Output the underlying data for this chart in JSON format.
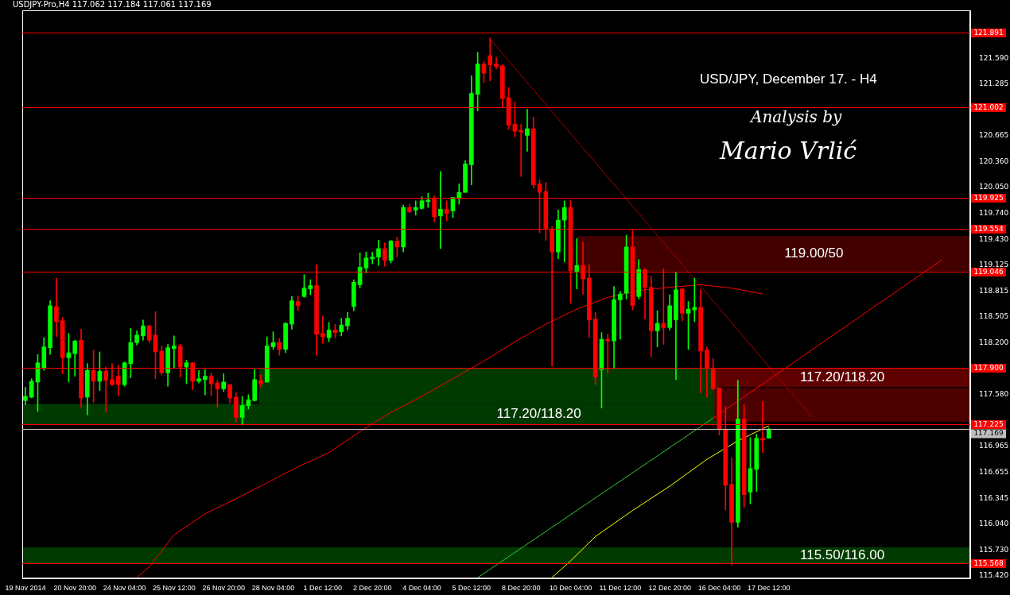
{
  "chart_data": {
    "type": "candlestick",
    "title": "USD/JPY, December 17. - H4",
    "annotations": [
      "USDJPY-Pro,H4  117.062 117.184 117.061 117.169",
      "Analysis by",
      "Mario Vrlić"
    ],
    "categories": [
      "19 Nov 2014",
      null,
      null,
      null,
      null,
      null,
      null,
      null,
      "20 Nov 20:00",
      null,
      null,
      null,
      null,
      null,
      null,
      null,
      "24 Nov 04:00",
      null,
      null,
      null,
      null,
      null,
      null,
      null,
      "25 Nov 12:00",
      null,
      null,
      null,
      null,
      null,
      null,
      null,
      "26 Nov 20:00",
      null,
      null,
      null,
      null,
      null,
      null,
      null,
      "28 Nov 04:00",
      null,
      null,
      null,
      null,
      null,
      null,
      null,
      "1 Dec 12:00",
      null,
      null,
      null,
      null,
      null,
      null,
      null,
      "2 Dec 20:00",
      null,
      null,
      null,
      null,
      null,
      null,
      null,
      "4 Dec 04:00",
      null,
      null,
      null,
      null,
      null,
      null,
      null,
      "5 Dec 12:00",
      null,
      null,
      null,
      null,
      null,
      null,
      null,
      "8 Dec 20:00",
      null,
      null,
      null,
      null,
      null,
      null,
      null,
      "10 Dec 04:00",
      null,
      null,
      null,
      null,
      null,
      null,
      null,
      "11 Dec 12:00",
      null,
      null,
      null,
      null,
      null,
      null,
      null,
      "12 Dec 20:00",
      null,
      null,
      null,
      null,
      null,
      null,
      null,
      "16 Dec 04:00",
      null,
      null,
      null,
      null,
      null,
      null,
      null,
      "17 Dec 12:00",
      null,
      null,
      null,
      null,
      null,
      null,
      null,
      null,
      null,
      null,
      null,
      null,
      null,
      null,
      null,
      null,
      null,
      null,
      null,
      null,
      null,
      null,
      null,
      null,
      null,
      null,
      null,
      null,
      null,
      null,
      null,
      null
    ],
    "ohlc": [
      [
        117.51,
        117.67,
        117.46,
        117.56
      ],
      [
        117.55,
        117.77,
        117.54,
        117.74
      ],
      [
        117.73,
        118.06,
        117.38,
        117.96
      ],
      [
        117.9,
        118.26,
        117.87,
        118.15
      ],
      [
        118.14,
        118.7,
        118.06,
        118.64
      ],
      [
        118.63,
        118.97,
        118.27,
        118.45
      ],
      [
        118.46,
        118.5,
        117.83,
        118.02
      ],
      [
        118.02,
        118.31,
        117.73,
        118.08
      ],
      [
        118.07,
        118.23,
        117.8,
        118.22
      ],
      [
        118.23,
        118.36,
        117.43,
        117.54
      ],
      [
        117.55,
        117.95,
        117.34,
        117.87
      ],
      [
        117.87,
        118.11,
        117.49,
        117.74
      ],
      [
        117.74,
        118.09,
        117.63,
        117.86
      ],
      [
        117.86,
        117.91,
        117.37,
        117.75
      ],
      [
        117.76,
        117.95,
        117.69,
        117.7
      ],
      [
        117.8,
        117.93,
        117.57,
        117.7
      ],
      [
        117.7,
        117.97,
        117.68,
        117.96
      ],
      [
        117.95,
        118.37,
        117.78,
        118.2
      ],
      [
        118.2,
        118.34,
        118.17,
        118.29
      ],
      [
        118.28,
        118.47,
        118.23,
        118.4
      ],
      [
        118.4,
        118.41,
        118.2,
        118.23
      ],
      [
        118.29,
        118.57,
        117.77,
        118.09
      ],
      [
        118.1,
        118.16,
        117.82,
        117.84
      ],
      [
        117.84,
        118.18,
        117.68,
        118.14
      ],
      [
        118.13,
        118.28,
        117.9,
        118.16
      ],
      [
        118.16,
        118.18,
        117.79,
        117.91
      ],
      [
        117.91,
        117.99,
        117.71,
        117.96
      ],
      [
        117.96,
        117.96,
        117.64,
        117.74
      ],
      [
        117.74,
        117.87,
        117.72,
        117.77
      ],
      [
        117.76,
        117.88,
        117.58,
        117.8
      ],
      [
        117.8,
        117.84,
        117.57,
        117.71
      ],
      [
        117.72,
        117.75,
        117.43,
        117.65
      ],
      [
        117.65,
        117.83,
        117.62,
        117.73
      ],
      [
        117.7,
        117.7,
        117.48,
        117.54
      ],
      [
        117.55,
        117.6,
        117.25,
        117.31
      ],
      [
        117.31,
        117.56,
        117.22,
        117.45
      ],
      [
        117.45,
        117.58,
        117.41,
        117.52
      ],
      [
        117.51,
        117.88,
        117.5,
        117.76
      ],
      [
        117.75,
        117.82,
        117.67,
        117.71
      ],
      [
        117.73,
        118.27,
        117.73,
        118.16
      ],
      [
        118.15,
        118.33,
        118.12,
        118.2
      ],
      [
        118.2,
        118.25,
        118.05,
        118.12
      ],
      [
        118.12,
        118.44,
        118.08,
        118.43
      ],
      [
        118.42,
        118.75,
        118.36,
        118.7
      ],
      [
        118.69,
        118.76,
        118.58,
        118.64
      ],
      [
        118.75,
        119.01,
        118.74,
        118.85
      ],
      [
        118.84,
        118.95,
        118.77,
        118.88
      ],
      [
        118.88,
        119.13,
        118.05,
        118.3
      ],
      [
        118.31,
        118.52,
        118.19,
        118.27
      ],
      [
        118.26,
        118.44,
        118.21,
        118.35
      ],
      [
        118.35,
        118.42,
        118.26,
        118.32
      ],
      [
        118.33,
        118.49,
        118.28,
        118.41
      ],
      [
        118.4,
        118.56,
        118.35,
        118.49
      ],
      [
        118.63,
        118.95,
        118.58,
        118.92
      ],
      [
        118.89,
        119.27,
        118.85,
        119.1
      ],
      [
        119.09,
        119.28,
        119.03,
        119.21
      ],
      [
        119.2,
        119.28,
        119.14,
        119.22
      ],
      [
        119.22,
        119.42,
        119.12,
        119.32
      ],
      [
        119.32,
        119.39,
        119.11,
        119.18
      ],
      [
        119.18,
        119.42,
        119.15,
        119.41
      ],
      [
        119.41,
        119.46,
        119.22,
        119.34
      ],
      [
        119.34,
        119.84,
        119.28,
        119.81
      ],
      [
        119.81,
        119.85,
        119.75,
        119.76
      ],
      [
        119.78,
        119.89,
        119.72,
        119.81
      ],
      [
        119.8,
        119.94,
        119.79,
        119.89
      ],
      [
        119.88,
        119.98,
        119.81,
        119.9
      ],
      [
        119.92,
        119.95,
        119.64,
        119.7
      ],
      [
        119.71,
        120.24,
        119.32,
        119.79
      ],
      [
        119.79,
        119.89,
        119.65,
        119.74
      ],
      [
        119.77,
        119.93,
        119.69,
        119.93
      ],
      [
        119.92,
        120.09,
        119.85,
        119.99
      ],
      [
        119.99,
        120.37,
        119.99,
        120.33
      ],
      [
        120.32,
        121.38,
        120.08,
        121.17
      ],
      [
        121.16,
        121.66,
        120.96,
        121.52
      ],
      [
        121.52,
        121.55,
        121.3,
        121.41
      ],
      [
        121.62,
        121.83,
        121.32,
        121.51
      ],
      [
        121.52,
        121.6,
        121.46,
        121.49
      ],
      [
        121.5,
        121.51,
        121.0,
        121.11
      ],
      [
        121.12,
        121.24,
        120.74,
        120.79
      ],
      [
        120.8,
        121.07,
        120.65,
        120.72
      ],
      [
        120.73,
        120.8,
        120.18,
        120.71
      ],
      [
        120.67,
        120.98,
        120.48,
        120.75
      ],
      [
        120.75,
        120.89,
        120.04,
        120.08
      ],
      [
        120.09,
        120.14,
        119.51,
        119.99
      ],
      [
        120.0,
        120.11,
        119.42,
        119.55
      ],
      [
        119.55,
        119.58,
        117.92,
        119.28
      ],
      [
        119.28,
        119.78,
        119.2,
        119.66
      ],
      [
        119.66,
        119.89,
        119.16,
        119.81
      ],
      [
        119.81,
        119.9,
        118.67,
        119.06
      ],
      [
        119.05,
        119.44,
        118.84,
        119.12
      ],
      [
        119.12,
        119.4,
        118.78,
        118.96
      ],
      [
        118.97,
        119.13,
        118.26,
        118.47
      ],
      [
        118.48,
        118.56,
        117.7,
        117.79
      ],
      [
        117.88,
        118.32,
        117.42,
        118.24
      ],
      [
        118.24,
        118.3,
        117.84,
        118.22
      ],
      [
        118.22,
        118.87,
        117.89,
        118.71
      ],
      [
        118.71,
        118.81,
        118.24,
        118.78
      ],
      [
        118.79,
        119.48,
        118.72,
        119.34
      ],
      [
        119.34,
        119.54,
        118.59,
        118.64
      ],
      [
        118.75,
        119.19,
        118.72,
        119.07
      ],
      [
        119.07,
        119.08,
        118.48,
        118.86
      ],
      [
        118.86,
        118.99,
        118.03,
        118.34
      ],
      [
        118.34,
        118.58,
        118.15,
        118.43
      ],
      [
        118.43,
        119.08,
        118.18,
        118.38
      ],
      [
        118.38,
        118.77,
        118.35,
        118.64
      ],
      [
        118.47,
        119.04,
        117.76,
        118.83
      ],
      [
        118.84,
        118.85,
        118.46,
        118.55
      ],
      [
        118.55,
        118.69,
        118.12,
        118.6
      ],
      [
        118.59,
        118.97,
        118.45,
        118.62
      ],
      [
        118.62,
        118.83,
        117.6,
        118.1
      ],
      [
        118.11,
        118.15,
        117.55,
        117.9
      ],
      [
        117.88,
        118.01,
        117.64,
        117.65
      ],
      [
        117.66,
        117.66,
        117.1,
        117.17
      ],
      [
        117.17,
        117.44,
        116.21,
        116.5
      ],
      [
        116.51,
        116.83,
        115.55,
        116.06
      ],
      [
        116.06,
        117.75,
        116.0,
        117.29
      ],
      [
        117.29,
        117.46,
        116.24,
        116.39
      ],
      [
        116.42,
        117.07,
        116.28,
        116.7
      ],
      [
        116.69,
        117.11,
        116.43,
        117.06
      ],
      [
        117.06,
        117.5,
        116.89,
        117.04
      ],
      [
        117.062,
        117.184,
        117.061,
        117.169
      ],
      null,
      null,
      null,
      null,
      null,
      null,
      null,
      null,
      null,
      null,
      null,
      null,
      null,
      null,
      null,
      null,
      null,
      null,
      null,
      null,
      null,
      null,
      null,
      null,
      null,
      null,
      null,
      null,
      null,
      null,
      null,
      null
    ],
    "colors": [
      "#00ff00",
      "#00ff00",
      "#00ff00",
      "#00ff00",
      "#00ff00",
      "#ff0000",
      "#ff0000",
      "#00ff00",
      "#00ff00",
      "#ff0000",
      "#00ff00",
      "#ff0000",
      "#00ff00",
      "#ff0000",
      "#ff0000",
      "#ff0000",
      "#00ff00",
      "#00ff00",
      "#00ff00",
      "#00ff00",
      "#ff0000",
      "#ff0000",
      "#ff0000",
      "#00ff00",
      "#00ff00",
      "#ff0000",
      "#00ff00",
      "#ff0000",
      "#00ff00",
      "#00ff00",
      "#ff0000",
      "#ff0000",
      "#00ff00",
      "#ff0000",
      "#ff0000",
      "#00ff00",
      "#00ff00",
      "#00ff00",
      "#ff0000",
      "#00ff00",
      "#00ff00",
      "#ff0000",
      "#00ff00",
      "#00ff00",
      "#ff0000",
      "#00ff00",
      "#00ff00",
      "#ff0000",
      "#ff0000",
      "#00ff00",
      "#ff0000",
      "#00ff00",
      "#00ff00",
      "#00ff00",
      "#00ff00",
      "#00ff00",
      "#00ff00",
      "#00ff00",
      "#ff0000",
      "#00ff00",
      "#ff0000",
      "#00ff00",
      "#ff0000",
      "#00ff00",
      "#00ff00",
      "#00ff00",
      "#ff0000",
      "#00ff00",
      "#ff0000",
      "#00ff00",
      "#00ff00",
      "#00ff00",
      "#00ff00",
      "#00ff00",
      "#ff0000",
      "#ff0000",
      "#ff0000",
      "#ff0000",
      "#ff0000",
      "#ff0000",
      "#ff0000",
      "#00ff00",
      "#ff0000",
      "#ff0000",
      "#ff0000",
      "#ff0000",
      "#00ff00",
      "#00ff00",
      "#ff0000",
      "#00ff00",
      "#ff0000",
      "#ff0000",
      "#ff0000",
      "#00ff00",
      "#ff0000",
      "#00ff00",
      "#00ff00",
      "#00ff00",
      "#ff0000",
      "#00ff00",
      "#ff0000",
      "#ff0000",
      "#00ff00",
      "#ff0000",
      "#00ff00",
      "#00ff00",
      "#ff0000",
      "#00ff00",
      "#00ff00",
      "#ff0000",
      "#ff0000",
      "#ff0000",
      "#ff0000",
      "#ff0000",
      "#ff0000",
      "#00ff00",
      "#ff0000",
      "#00ff00",
      "#00ff00",
      "#ff0000",
      "#00ff00",
      null,
      null,
      null,
      null,
      null,
      null,
      null,
      null,
      null,
      null,
      null,
      null,
      null,
      null,
      null,
      null,
      null,
      null,
      null,
      null,
      null,
      null,
      null,
      null,
      null,
      null,
      null,
      null,
      null,
      null,
      null,
      null
    ],
    "series": [
      {
        "type": "line",
        "color": "#ff0000",
        "values": [
          null,
          null,
          null,
          null,
          null,
          null,
          null,
          null,
          null,
          null,
          null,
          null,
          null,
          null,
          null,
          null,
          null,
          null,
          115.4,
          null,
          115.53,
          null,
          null,
          null,
          115.91,
          null,
          null,
          null,
          null,
          116.16,
          null,
          null,
          null,
          null,
          116.34,
          null,
          null,
          null,
          null,
          116.53,
          null,
          null,
          null,
          null,
          116.72,
          null,
          null,
          null,
          null,
          116.89,
          null,
          null,
          null,
          null,
          117.14,
          null,
          null,
          null,
          null,
          117.37,
          null,
          null,
          null,
          null,
          117.56,
          null,
          null,
          null,
          null,
          117.77,
          null,
          null,
          null,
          null,
          117.98,
          null,
          null,
          null,
          null,
          118.21,
          null,
          null,
          null,
          null,
          118.42,
          null,
          null,
          null,
          null,
          118.6,
          null,
          null,
          null,
          null,
          118.74,
          null,
          null,
          null,
          null,
          118.82,
          null,
          null,
          null,
          null,
          118.86,
          null,
          null,
          null,
          null,
          118.89,
          null,
          null,
          null,
          null,
          118.85,
          null,
          null,
          null,
          null,
          118.78,
          null,
          null,
          null,
          null,
          null,
          null,
          null,
          null,
          null,
          null,
          null,
          null,
          null,
          null,
          null,
          null,
          null,
          null,
          null,
          null,
          null,
          null,
          null,
          null,
          null,
          null,
          null,
          null,
          null,
          null,
          null,
          null,
          null
        ]
      },
      {
        "type": "line",
        "color": "#ffff00",
        "values": [
          null,
          null,
          null,
          null,
          null,
          null,
          null,
          null,
          null,
          null,
          null,
          null,
          null,
          null,
          null,
          null,
          null,
          null,
          null,
          null,
          null,
          null,
          null,
          null,
          null,
          null,
          null,
          null,
          null,
          null,
          null,
          null,
          null,
          null,
          null,
          null,
          null,
          null,
          null,
          null,
          null,
          null,
          null,
          null,
          null,
          null,
          null,
          null,
          null,
          null,
          null,
          null,
          null,
          null,
          null,
          null,
          null,
          null,
          null,
          null,
          null,
          null,
          null,
          null,
          null,
          null,
          null,
          null,
          null,
          null,
          null,
          null,
          null,
          null,
          null,
          null,
          null,
          null,
          null,
          null,
          null,
          null,
          null,
          null,
          null,
          115.4,
          null,
          null,
          115.6,
          null,
          null,
          null,
          115.89,
          null,
          null,
          null,
          null,
          null,
          116.2,
          null,
          null,
          null,
          null,
          null,
          116.49,
          null,
          null,
          null,
          null,
          null,
          116.81,
          null,
          null,
          null,
          null,
          117.03,
          null,
          null,
          null,
          null,
          117.21,
          null,
          null,
          null,
          null,
          null,
          null,
          null,
          null,
          null,
          null,
          null,
          null,
          null,
          null,
          null,
          null,
          null,
          null,
          null,
          null,
          null,
          null,
          null,
          null,
          null,
          null,
          null,
          null,
          null,
          null,
          null,
          null
        ]
      },
      {
        "type": "line",
        "color": "#33cc33",
        "values": [
          null,
          null,
          null,
          null,
          null,
          null,
          null,
          null,
          null,
          null,
          null,
          null,
          null,
          null,
          null,
          null,
          null,
          null,
          null,
          null,
          null,
          null,
          null,
          null,
          null,
          null,
          null,
          null,
          null,
          null,
          null,
          null,
          null,
          null,
          null,
          null,
          null,
          null,
          null,
          null,
          null,
          null,
          null,
          null,
          null,
          null,
          null,
          null,
          null,
          null,
          null,
          null,
          null,
          null,
          null,
          null,
          null,
          null,
          null,
          null,
          null,
          null,
          null,
          null,
          null,
          null,
          null,
          null,
          null,
          null,
          null,
          null,
          null,
          115.4,
          null,
          null,
          null,
          null,
          null,
          null,
          null,
          null,
          null,
          null,
          null,
          null,
          null,
          null,
          null,
          null,
          null,
          null,
          null,
          null,
          null,
          null,
          null,
          null,
          null,
          null,
          null,
          null,
          null,
          null,
          null,
          null,
          null,
          null,
          null,
          null,
          null,
          117.3,
          null,
          null,
          null,
          null,
          null,
          null,
          null,
          null,
          null,
          null,
          null,
          null,
          null,
          null,
          null,
          null,
          null,
          null,
          null,
          null,
          null,
          null,
          null,
          null,
          null,
          null,
          null,
          null,
          null,
          null,
          null,
          null,
          null,
          null,
          null,
          null,
          null,
          null,
          null,
          null,
          null
        ]
      },
      {
        "type": "line",
        "color": "#ff0000",
        "values": [
          null,
          null,
          null,
          null,
          null,
          null,
          null,
          null,
          null,
          null,
          null,
          null,
          null,
          null,
          null,
          null,
          null,
          null,
          null,
          null,
          null,
          null,
          null,
          null,
          null,
          null,
          null,
          null,
          null,
          null,
          null,
          null,
          null,
          null,
          null,
          null,
          null,
          null,
          null,
          null,
          null,
          null,
          null,
          null,
          null,
          null,
          null,
          null,
          null,
          null,
          null,
          null,
          null,
          null,
          null,
          null,
          null,
          null,
          null,
          null,
          null,
          null,
          null,
          null,
          null,
          null,
          null,
          null,
          null,
          null,
          null,
          null,
          null,
          null,
          null,
          null,
          null,
          null,
          null,
          null,
          null,
          null,
          null,
          null,
          null,
          null,
          null,
          null,
          null,
          null,
          null,
          null,
          null,
          null,
          null,
          null,
          null,
          null,
          null,
          null,
          null,
          null,
          null,
          null,
          null,
          null,
          null,
          null,
          null,
          null,
          null,
          117.3,
          null,
          null,
          null,
          null,
          null,
          null,
          null,
          null,
          null,
          null,
          null,
          null,
          null,
          null,
          null,
          null,
          null,
          null,
          null,
          null,
          null,
          null,
          null,
          null,
          null,
          null,
          null,
          null,
          null,
          null,
          null,
          null,
          null,
          null,
          null,
          null,
          119.19,
          null,
          null,
          null,
          null
        ]
      },
      {
        "type": "line",
        "color": "#a00000",
        "values": [
          null,
          null,
          null,
          null,
          null,
          null,
          null,
          null,
          null,
          null,
          null,
          null,
          null,
          null,
          null,
          null,
          null,
          null,
          null,
          null,
          null,
          null,
          null,
          null,
          null,
          null,
          null,
          null,
          null,
          null,
          null,
          null,
          null,
          null,
          null,
          null,
          null,
          null,
          null,
          null,
          null,
          null,
          null,
          null,
          null,
          null,
          null,
          null,
          null,
          null,
          null,
          null,
          null,
          null,
          null,
          null,
          null,
          null,
          null,
          null,
          null,
          null,
          null,
          null,
          null,
          null,
          null,
          null,
          null,
          null,
          null,
          null,
          null,
          null,
          null,
          121.82,
          null,
          null,
          null,
          null,
          null,
          null,
          null,
          null,
          null,
          null,
          null,
          null,
          null,
          null,
          null,
          null,
          null,
          null,
          null,
          null,
          null,
          null,
          null,
          null,
          null,
          null,
          null,
          null,
          null,
          null,
          null,
          null,
          null,
          null,
          null,
          null,
          null,
          null,
          null,
          null,
          null,
          null,
          null,
          null,
          null,
          null,
          null,
          null,
          null,
          null,
          null,
          117.31,
          null,
          null,
          null,
          null,
          null,
          null,
          null,
          null,
          null,
          null,
          null,
          null,
          null,
          null,
          null,
          null,
          null,
          null,
          null,
          null,
          null,
          null,
          null,
          null,
          null
        ]
      }
    ],
    "ylim": [
      115.39,
      122.16
    ],
    "yticks": [
      {
        "value": 115.42,
        "label": "115.420"
      },
      {
        "value": 115.73,
        "label": "115.730"
      },
      {
        "value": 116.04,
        "label": "116.040"
      },
      {
        "value": 116.345,
        "label": "116.345"
      },
      {
        "value": 116.655,
        "label": "116.655"
      },
      {
        "value": 116.965,
        "label": "116.965"
      },
      {
        "value": 117.58,
        "label": "117.580"
      },
      {
        "value": 118.2,
        "label": "118.200"
      },
      {
        "value": 118.505,
        "label": "118.505"
      },
      {
        "value": 118.815,
        "label": "118.815"
      },
      {
        "value": 119.125,
        "label": "119.125"
      },
      {
        "value": 119.43,
        "label": "119.430"
      },
      {
        "value": 119.74,
        "label": "119.740"
      },
      {
        "value": 120.05,
        "label": "120.050"
      },
      {
        "value": 120.36,
        "label": "120.360"
      },
      {
        "value": 120.665,
        "label": "120.665"
      },
      {
        "value": 121.285,
        "label": "121.285"
      },
      {
        "value": 121.59,
        "label": "121.590"
      }
    ],
    "ref_lines": [
      {
        "axis": "y",
        "value": 121.891,
        "label": "121.891",
        "color": "#ff0000"
      },
      {
        "axis": "y",
        "value": 121.002,
        "label": "121.002",
        "color": "#ff0000"
      },
      {
        "axis": "y",
        "value": 119.925,
        "label": "119.925",
        "color": "#ff0000"
      },
      {
        "axis": "y",
        "value": 119.554,
        "label": "119.554",
        "color": "#ff0000"
      },
      {
        "axis": "y",
        "value": 119.046,
        "label": "119.046",
        "color": "#ff0000"
      },
      {
        "axis": "y",
        "value": 117.9,
        "label": "117.900",
        "color": "#ff0000"
      },
      {
        "axis": "y",
        "value": 117.225,
        "label": "117.225",
        "color": "#ff0000"
      },
      {
        "axis": "y",
        "value": 115.568,
        "label": "115.568",
        "color": "#ff0000"
      },
      {
        "axis": "y",
        "value": 117.169,
        "label": "117.169",
        "color": "#c0c0c0"
      }
    ],
    "bands": [
      {
        "axis": "y",
        "from": 115.57,
        "to": 115.76,
        "label": "115.50/116.00",
        "color": "#004400"
      },
      {
        "axis": "y",
        "from": 117.23,
        "to": 117.47,
        "label": "117.20/118.20",
        "color": "#004400"
      },
      {
        "axis": "y",
        "from": 117.47,
        "to": 117.89,
        "color": "#004400"
      },
      {
        "axis": "y",
        "from": 119.05,
        "to": 119.47,
        "label": "119.00/50",
        "color": "#4d0000"
      },
      {
        "axis": "y",
        "from": 117.67,
        "to": 117.89,
        "label": "117.20/118.20",
        "color": "#6e0000"
      },
      {
        "axis": "y",
        "from": 117.26,
        "to": 117.66,
        "color": "#5a0000"
      }
    ]
  }
}
